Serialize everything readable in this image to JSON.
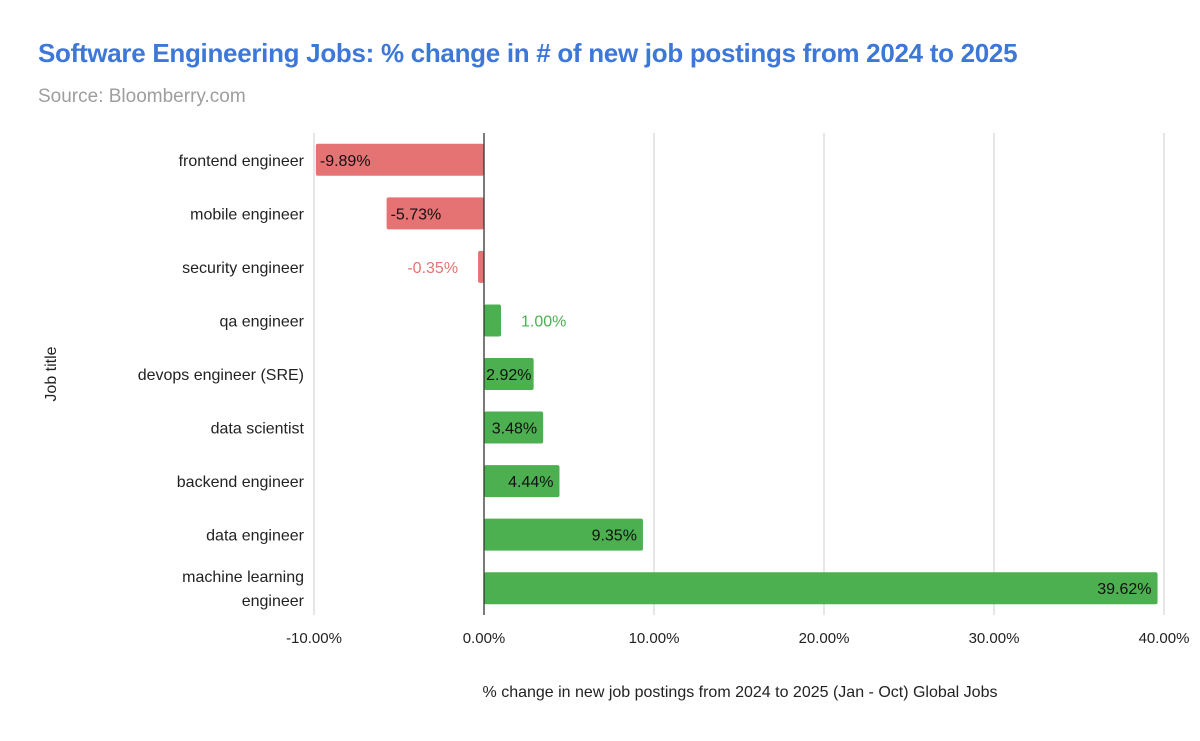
{
  "chart_data": {
    "type": "bar",
    "orientation": "horizontal",
    "title": "Software Engineering Jobs: % change in # of new job postings from 2024 to 2025",
    "subtitle": "Source: Bloomberry.com",
    "xlabel": "% change in new job postings from 2024 to 2025 (Jan - Oct) Global Jobs",
    "ylabel": "Job title",
    "categories": [
      "frontend engineer",
      "mobile engineer",
      "security engineer",
      "qa engineer",
      "devops engineer (SRE)",
      "data scientist",
      "backend engineer",
      "data engineer",
      "machine learning engineer"
    ],
    "values": [
      -9.89,
      -5.73,
      -0.35,
      1.0,
      2.92,
      3.48,
      4.44,
      9.35,
      39.62
    ],
    "data_labels": [
      "-9.89%",
      "-5.73%",
      "-0.35%",
      "1.00%",
      "2.92%",
      "3.48%",
      "4.44%",
      "9.35%",
      "39.62%"
    ],
    "xlim": [
      -10,
      40
    ],
    "xticks": [
      -10,
      0,
      10,
      20,
      30,
      40
    ],
    "xtick_labels": [
      "-10.00%",
      "0.00%",
      "10.00%",
      "20.00%",
      "30.00%",
      "40.00%"
    ],
    "grid": true,
    "legend": "none",
    "colors": {
      "negative": "#e57373",
      "positive": "#4caf50",
      "title": "#3d78d8"
    }
  }
}
